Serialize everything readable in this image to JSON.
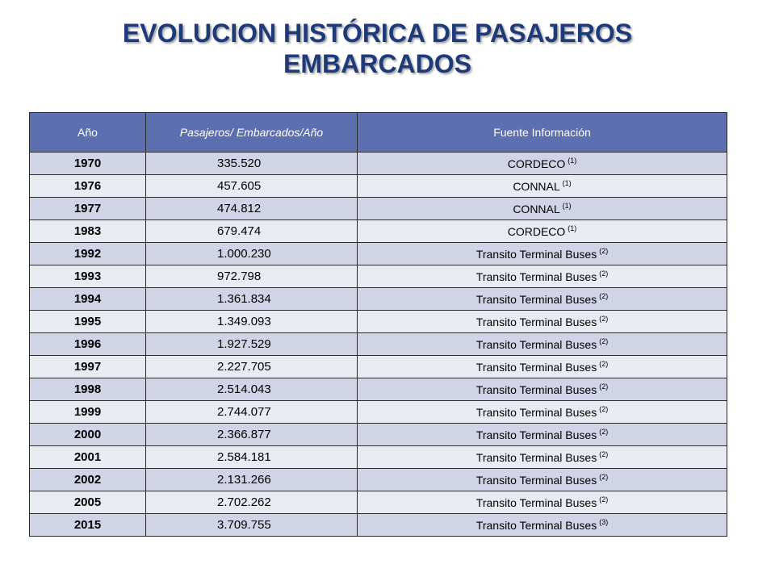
{
  "title": {
    "line1": "EVOLUCION HISTÓRICA DE PASAJEROS",
    "line2": "EMBARCADOS"
  },
  "table": {
    "headers": [
      "Año",
      "Pasajeros/ Embarcados/Año",
      "Fuente Información"
    ],
    "rows": [
      {
        "year": "1970",
        "passengers": "335.520",
        "source": "CORDECO",
        "note": "(1)"
      },
      {
        "year": "1976",
        "passengers": "457.605",
        "source": "CONNAL",
        "note": "(1)"
      },
      {
        "year": "1977",
        "passengers": "474.812",
        "source": "CONNAL",
        "note": "(1)"
      },
      {
        "year": "1983",
        "passengers": "679.474",
        "source": "CORDECO",
        "note": "(1)"
      },
      {
        "year": "1992",
        "passengers": "1.000.230",
        "source": "Transito Terminal Buses",
        "note": "(2)"
      },
      {
        "year": "1993",
        "passengers": "972.798",
        "source": "Transito Terminal Buses",
        "note": "(2)"
      },
      {
        "year": "1994",
        "passengers": "1.361.834",
        "source": "Transito Terminal Buses",
        "note": "(2)"
      },
      {
        "year": "1995",
        "passengers": "1.349.093",
        "source": "Transito Terminal Buses",
        "note": "(2)"
      },
      {
        "year": "1996",
        "passengers": "1.927.529",
        "source": "Transito Terminal Buses",
        "note": "(2)"
      },
      {
        "year": "1997",
        "passengers": "2.227.705",
        "source": "Transito Terminal Buses",
        "note": "(2)"
      },
      {
        "year": "1998",
        "passengers": "2.514.043",
        "source": "Transito Terminal Buses",
        "note": "(2)"
      },
      {
        "year": "1999",
        "passengers": "2.744.077",
        "source": "Transito Terminal Buses",
        "note": "(2)"
      },
      {
        "year": "2000",
        "passengers": "2.366.877",
        "source": "Transito Terminal Buses",
        "note": "(2)"
      },
      {
        "year": "2001",
        "passengers": "2.584.181",
        "source": "Transito Terminal Buses",
        "note": "(2)"
      },
      {
        "year": "2002",
        "passengers": "2.131.266",
        "source": "Transito Terminal Buses",
        "note": "(2)"
      },
      {
        "year": "2005",
        "passengers": "2.702.262",
        "source": "Transito Terminal Buses",
        "note": "(2)"
      },
      {
        "year": "2015",
        "passengers": "3.709.755",
        "source": "Transito Terminal Buses",
        "note": "(3)"
      }
    ]
  },
  "colors": {
    "title": "#1f3a7a",
    "header_bg": "#5c70b0",
    "row_odd": "#d0d4e6",
    "row_even": "#e9ebf2"
  }
}
